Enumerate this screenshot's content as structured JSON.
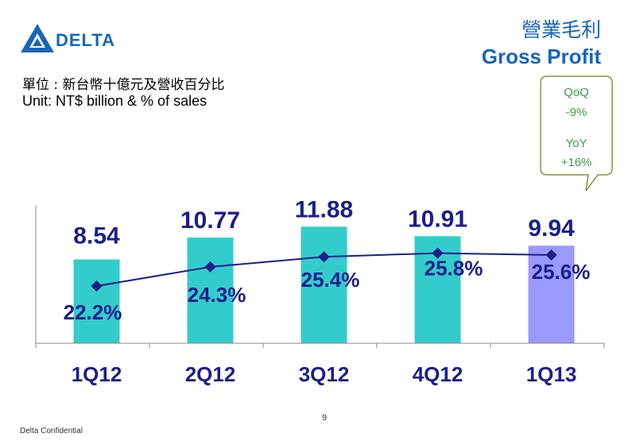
{
  "header": {
    "brand": "DELTA",
    "title_zh": "營業毛利",
    "title_en": "Gross Profit",
    "unit_zh": "單位 : 新台幣十億元及營收百分比",
    "unit_en": "Unit: NT$ billion & % of sales"
  },
  "callout": {
    "qoq_label": "QoQ",
    "qoq_value": "-9%",
    "yoy_label": "YoY",
    "yoy_value": "+16%"
  },
  "colors": {
    "bar": "#33cccc",
    "bar_highlight": "#9999ff",
    "line": "#1a1f8c",
    "label": "#1a1f8c",
    "title": "#1565c0",
    "callout": "#3aa04a",
    "callout_border": "#6b7d18"
  },
  "chart_data": {
    "type": "bar",
    "categories": [
      "1Q12",
      "2Q12",
      "3Q12",
      "4Q12",
      "1Q13"
    ],
    "series": [
      {
        "values": [
          8.54,
          10.77,
          11.88,
          10.91,
          9.94
        ],
        "labels": [
          "8.54",
          "10.77",
          "11.88",
          "10.91",
          "9.94"
        ]
      },
      {
        "type": "line",
        "values": [
          22.2,
          24.3,
          25.4,
          25.8,
          25.6
        ],
        "labels": [
          "22.2%",
          "24.3%",
          "25.4%",
          "25.8%",
          "25.6%"
        ]
      }
    ],
    "highlight_index": 4
  },
  "footer": {
    "page": "9",
    "confidential": "Delta Confidential"
  }
}
